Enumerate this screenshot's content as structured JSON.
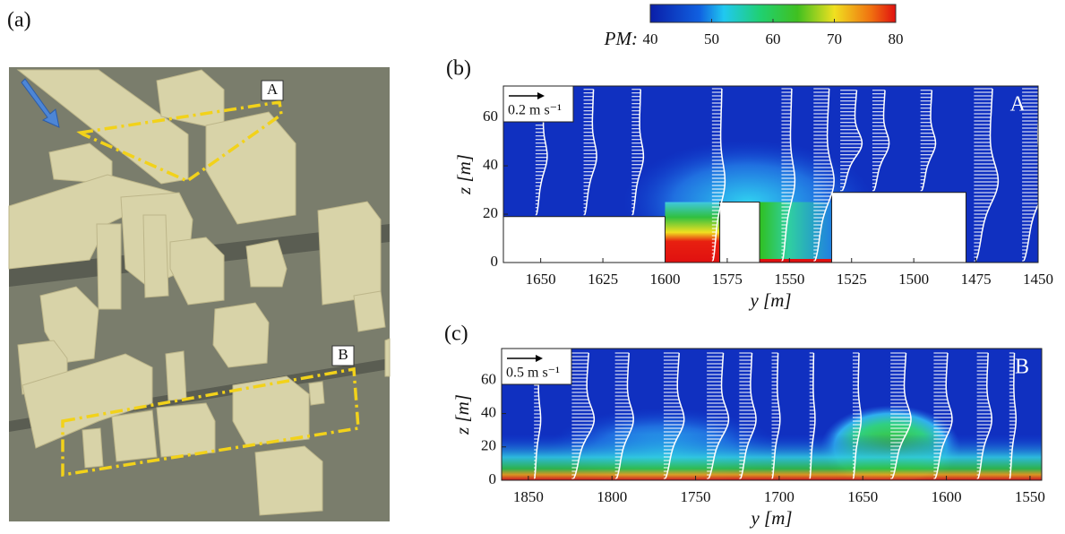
{
  "figure": {
    "panel_a": {
      "label": "(a)",
      "boxes": [
        "A",
        "B"
      ]
    }
  },
  "colorbar": {
    "label": "PM:",
    "lim": [
      40,
      80
    ],
    "ticks": [
      40,
      50,
      60,
      70,
      80
    ]
  },
  "chart_data": [
    {
      "type": "contour",
      "panel": "(b)",
      "region": "A",
      "scale": "0.2 m s⁻¹",
      "xlabel": "y [m]",
      "ylabel": "z [m]",
      "xlim": [
        1665,
        1450
      ],
      "ylim": [
        0,
        73
      ],
      "xticks": [
        1650,
        1625,
        1600,
        1575,
        1550,
        1525,
        1500,
        1475,
        1450
      ],
      "yticks": [
        0,
        20,
        40,
        60
      ],
      "buildings": [
        {
          "x": [
            1665,
            1600
          ],
          "height": 19
        },
        {
          "x": [
            1578,
            1562
          ],
          "height": 25
        },
        {
          "x": [
            1533,
            1479
          ],
          "height": 29
        }
      ]
    },
    {
      "type": "contour",
      "panel": "(c)",
      "region": "B",
      "scale": "0.5 m s⁻¹",
      "xlabel": "y [m]",
      "ylabel": "z [m]",
      "xlim": [
        1866,
        1543
      ],
      "ylim": [
        0,
        79
      ],
      "xticks": [
        1850,
        1800,
        1750,
        1700,
        1650,
        1600,
        1550
      ],
      "yticks": [
        0,
        20,
        40,
        60
      ]
    }
  ]
}
